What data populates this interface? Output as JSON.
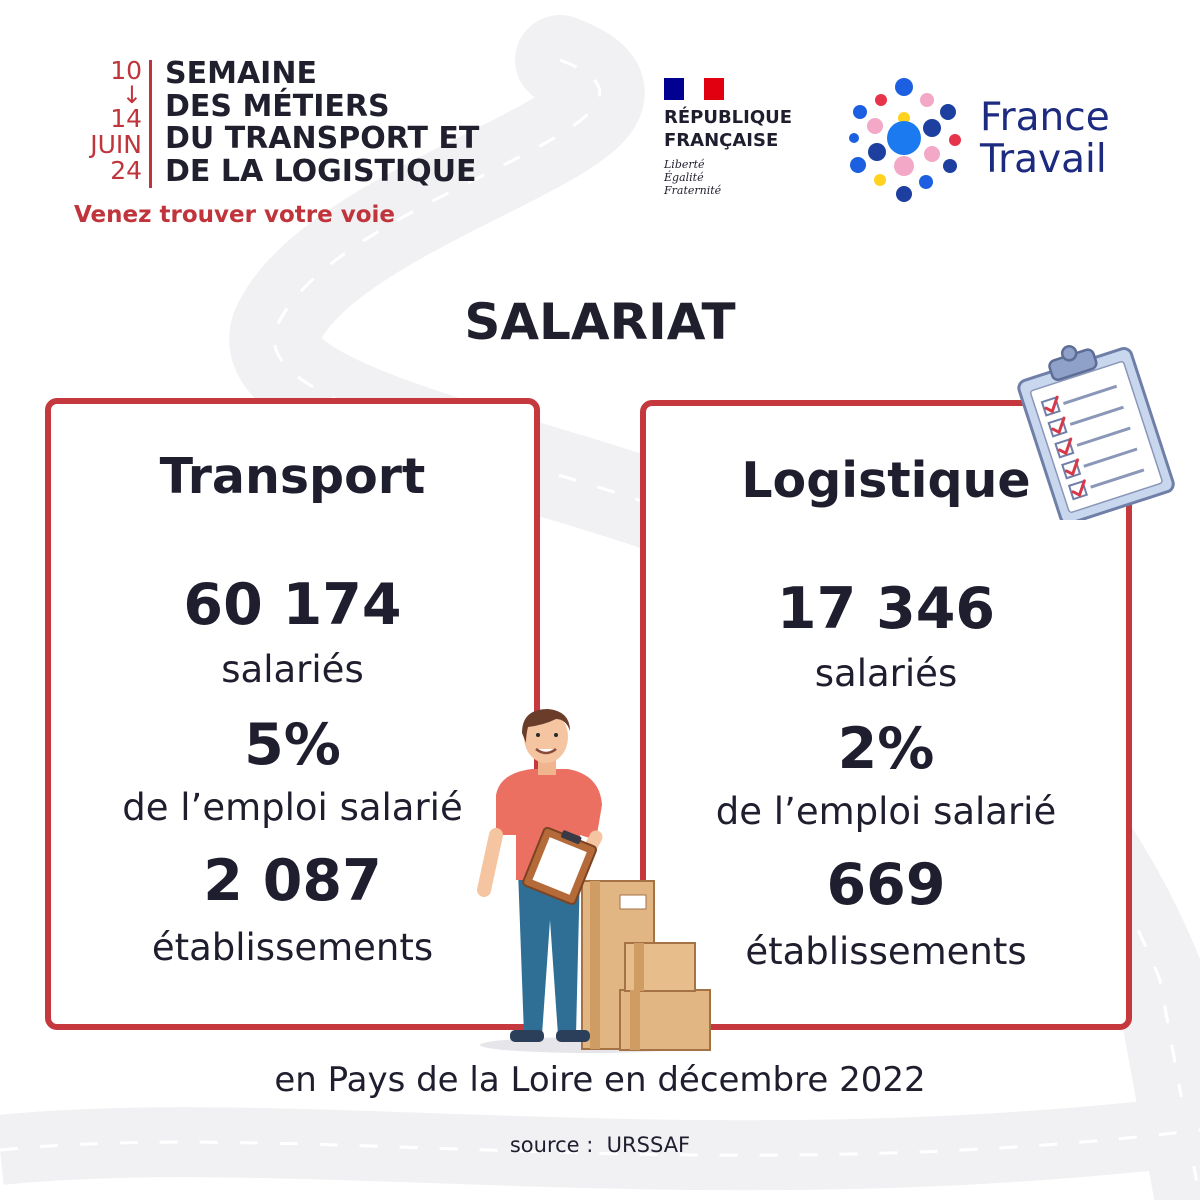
{
  "event": {
    "dates": [
      "10",
      "↓",
      "14",
      "JUIN",
      "24"
    ],
    "title_lines": [
      "SEMAINE",
      "DES MÉTIERS",
      "DU TRANSPORT ET",
      "DE LA LOGISTIQUE"
    ],
    "tagline": "Venez trouver votre voie"
  },
  "republique": {
    "name_lines": [
      "RÉPUBLIQUE",
      "FRANÇAISE"
    ],
    "motto_lines": [
      "Liberté",
      "Égalité",
      "Fraternité"
    ]
  },
  "france_travail": {
    "name_lines": [
      "France",
      "Travail"
    ]
  },
  "title": "SALARIAT",
  "cards": [
    {
      "heading": "Transport",
      "employees_value": "60 174",
      "employees_label": "salariés",
      "share_value": "5%",
      "share_label": "de l’emploi salarié",
      "establishments_value": "2 087",
      "establishments_label": "établissements"
    },
    {
      "heading": "Logistique",
      "employees_value": "17 346",
      "employees_label": "salariés",
      "share_value": "2%",
      "share_label": "de l’emploi salarié",
      "establishments_value": "669",
      "establishments_label": "établissements"
    }
  ],
  "scope": "en Pays de la Loire en décembre 2022",
  "source": "source :  URSSAF",
  "colors": {
    "accent_red": "#c4383e",
    "text_dark": "#1e1e2e",
    "france_travail_blue": "#1c2a80"
  },
  "icons": [
    "road-background",
    "marianne-flag-icon",
    "france-travail-dots-logo",
    "clipboard-checklist-icon",
    "delivery-worker-illustration",
    "cardboard-boxes-icon"
  ]
}
